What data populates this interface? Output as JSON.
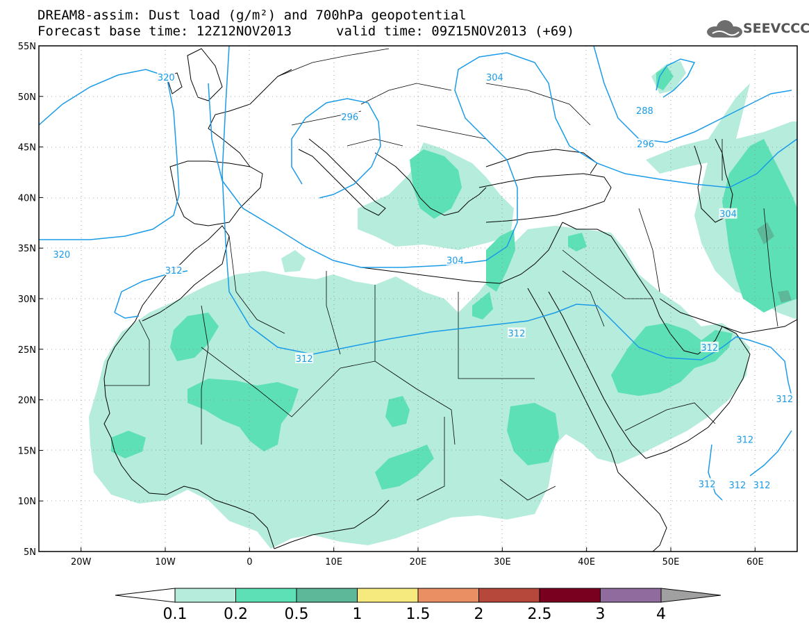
{
  "title": {
    "line1": "DREAM8-assim: Dust load (g/m²) and 700hPa geopotential",
    "line2": "Forecast base time: 12Z12NOV2013",
    "valid": "valid time: 09Z15NOV2013 (+69)"
  },
  "logo": {
    "text": "SEEVCCC",
    "icon": "cloud-icon"
  },
  "map": {
    "lon_range": [
      -25,
      65
    ],
    "lat_range": [
      5,
      55
    ],
    "x_ticks": [
      {
        "lon": -20,
        "label": "20W"
      },
      {
        "lon": -10,
        "label": "10W"
      },
      {
        "lon": 0,
        "label": "0"
      },
      {
        "lon": 10,
        "label": "10E"
      },
      {
        "lon": 20,
        "label": "20E"
      },
      {
        "lon": 30,
        "label": "30E"
      },
      {
        "lon": 40,
        "label": "40E"
      },
      {
        "lon": 50,
        "label": "50E"
      },
      {
        "lon": 60,
        "label": "60E"
      }
    ],
    "y_ticks": [
      {
        "lat": 55,
        "label": "55N"
      },
      {
        "lat": 50,
        "label": "50N"
      },
      {
        "lat": 45,
        "label": "45N"
      },
      {
        "lat": 40,
        "label": "40N"
      },
      {
        "lat": 35,
        "label": "35N"
      },
      {
        "lat": 30,
        "label": "30N"
      },
      {
        "lat": 25,
        "label": "25N"
      },
      {
        "lat": 20,
        "label": "20N"
      },
      {
        "lat": 15,
        "label": "15N"
      },
      {
        "lat": 10,
        "label": "10N"
      },
      {
        "lat": 5,
        "label": "5N"
      }
    ],
    "contour_color": "#1a9be8",
    "contour_labels": [
      {
        "text": "320",
        "lon": -9.9,
        "lat": 51.9
      },
      {
        "text": "320",
        "lon": -22.3,
        "lat": 34.4
      },
      {
        "text": "304",
        "lon": 29.1,
        "lat": 51.9
      },
      {
        "text": "296",
        "lon": 11.9,
        "lat": 48.0
      },
      {
        "text": "288",
        "lon": 46.9,
        "lat": 48.6
      },
      {
        "text": "296",
        "lon": 47.0,
        "lat": 45.3
      },
      {
        "text": "304",
        "lon": 56.8,
        "lat": 38.4
      },
      {
        "text": "304",
        "lon": 24.4,
        "lat": 33.8
      },
      {
        "text": "312",
        "lon": -9.0,
        "lat": 32.8
      },
      {
        "text": "312",
        "lon": 31.7,
        "lat": 26.6
      },
      {
        "text": "312",
        "lon": 6.5,
        "lat": 24.1
      },
      {
        "text": "312",
        "lon": 54.6,
        "lat": 25.2
      },
      {
        "text": "312",
        "lon": 58.8,
        "lat": 16.1
      },
      {
        "text": "312",
        "lon": 54.3,
        "lat": 11.7
      },
      {
        "text": "312",
        "lon": 57.9,
        "lat": 11.6
      },
      {
        "text": "312",
        "lon": 60.8,
        "lat": 11.6
      },
      {
        "text": "312",
        "lon": 63.5,
        "lat": 20.1
      }
    ]
  },
  "colorbar": {
    "colors": [
      "#ffffff",
      "#b5ecdc",
      "#5ee0b6",
      "#5cb898",
      "#f6ea7e",
      "#e98f63",
      "#b5483a",
      "#7a0020",
      "#906c9e",
      "#a0a0a0"
    ],
    "labels": [
      "0.1",
      "0.2",
      "0.5",
      "1",
      "1.5",
      "2",
      "2.5",
      "3",
      "4"
    ]
  }
}
